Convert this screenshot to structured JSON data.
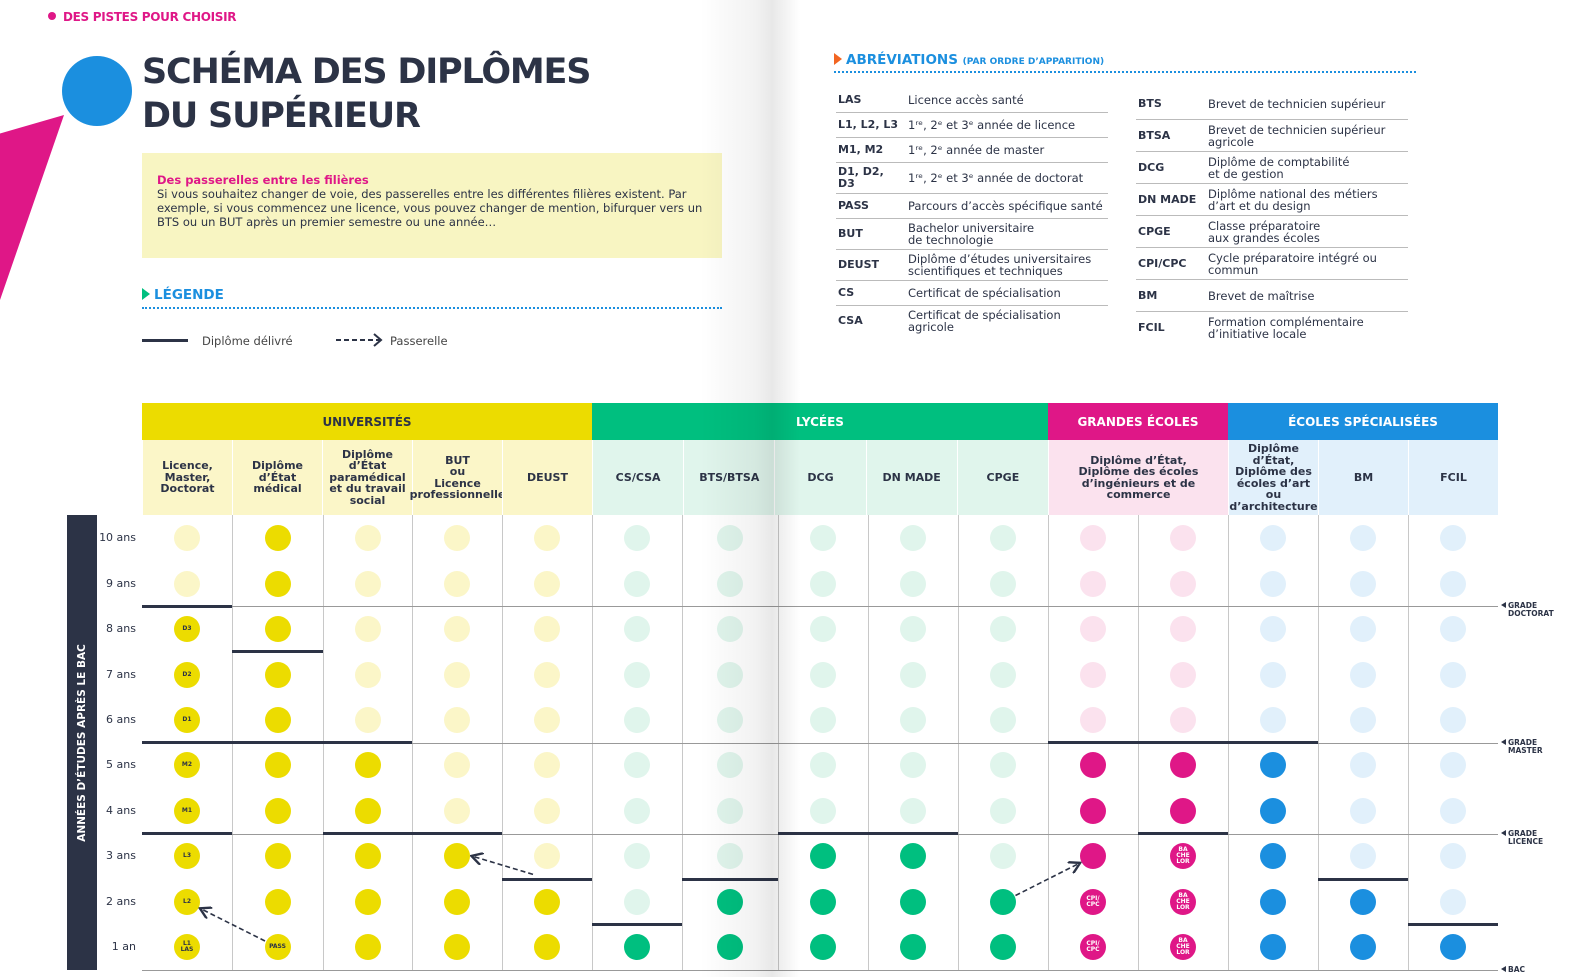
{
  "header": {
    "kicker": "DES PISTES POUR CHOISIR",
    "title": "SCHÉMA DES DIPLÔMES\nDU SUPÉRIEUR"
  },
  "callout": {
    "title": "Des passerelles entre les filières",
    "body": "Si vous souhaitez changer de voie, des passerelles entre les différentes filières existent. Par exemple, si vous commencez une licence, vous pouvez changer de mention, bifurquer vers un BTS ou un BUT après un premier semestre ou une année…"
  },
  "legend": {
    "title": "LÉGENDE",
    "items": [
      "Diplôme délivré",
      "Passerelle"
    ]
  },
  "abbreviations": {
    "title": "ABRÉVIATIONS",
    "subtitle": "(PAR ORDRE D’APPARITION)",
    "columns": [
      [
        [
          "LAS",
          "Licence accès santé"
        ],
        [
          "L1, L2, L3",
          "1ʳᵉ, 2ᵉ et 3ᵉ année de licence"
        ],
        [
          "M1, M2",
          "1ʳᵉ, 2ᵉ année de master"
        ],
        [
          "D1, D2, D3",
          "1ʳᵉ, 2ᵉ et 3ᵉ année de doctorat"
        ],
        [
          "PASS",
          "Parcours d’accès spécifique santé"
        ],
        [
          "BUT",
          "Bachelor universitaire\nde technologie"
        ],
        [
          "DEUST",
          "Diplôme d’études universitaires\nscientifiques et techniques"
        ],
        [
          "CS",
          "Certificat de spécialisation"
        ],
        [
          "CSA",
          "Certificat de spécialisation agricole"
        ]
      ],
      [
        [
          "BTS",
          "Brevet de technicien supérieur"
        ],
        [
          "BTSA",
          "Brevet de technicien supérieur\nagricole"
        ],
        [
          "DCG",
          "Diplôme de comptabilité\net de gestion"
        ],
        [
          "DN MADE",
          "Diplôme national des métiers\nd’art et du design"
        ],
        [
          "CPGE",
          "Classe préparatoire\naux grandes écoles"
        ],
        [
          "CPI/CPC",
          "Cycle préparatoire intégré ou\ncommun"
        ],
        [
          "BM",
          "Brevet de maîtrise"
        ],
        [
          "FCIL",
          "Formation complémentaire\nd’initiative locale"
        ]
      ]
    ]
  },
  "schema": {
    "axis_title": "ANNÉES D’ÉTUDES APRÈS LE BAC",
    "years": [
      "1 an",
      "2 ans",
      "3 ans",
      "4 ans",
      "5 ans",
      "6 ans",
      "7 ans",
      "8 ans",
      "9 ans",
      "10 ans"
    ],
    "grades": [
      {
        "label": "BAC",
        "after": 0
      },
      {
        "label": "GRADE\nLICENCE",
        "after": 3
      },
      {
        "label": "GRADE\nMASTER",
        "after": 5
      },
      {
        "label": "GRADE\nDOCTORAT",
        "after": 8
      }
    ],
    "groups": [
      {
        "name": "UNIVERSITÉS",
        "color": "#ecdc00",
        "light": "#fbf6c8",
        "text_color": "#2c3346",
        "dot_text": "#2c3346",
        "headers": [
          "Licence,\nMaster,\nDoctorat",
          "Diplôme d’État\nmédical",
          "Diplôme d’État\nparamédical\net du travail\nsocial",
          "BUT\nou\nLicence\nprofessionnelle",
          "DEUST"
        ],
        "columns": [
          {
            "dots": [
              1,
              1,
              1,
              1,
              1,
              1,
              1,
              1,
              0,
              0
            ],
            "labels": [
              "L1\nLAS",
              "L2",
              "L3",
              "M1",
              "M2",
              "D1",
              "D2",
              "D3"
            ],
            "diplomas": [
              3,
              5,
              8
            ]
          },
          {
            "dots": [
              1,
              1,
              1,
              1,
              1,
              1,
              1,
              1,
              1,
              1
            ],
            "labels": [
              "PASS"
            ],
            "diplomas": [
              5,
              7
            ]
          },
          {
            "dots": [
              1,
              1,
              1,
              1,
              1,
              0,
              0,
              0,
              0,
              0
            ],
            "labels": [],
            "diplomas": [
              3,
              5
            ]
          },
          {
            "dots": [
              1,
              1,
              1,
              0,
              0,
              0,
              0,
              0,
              0,
              0
            ],
            "labels": [],
            "diplomas": [
              3
            ]
          },
          {
            "dots": [
              1,
              1,
              0,
              0,
              0,
              0,
              0,
              0,
              0,
              0
            ],
            "labels": [],
            "diplomas": [
              2
            ]
          }
        ]
      },
      {
        "name": "LYCÉES",
        "color": "#00bf7f",
        "light": "#e0f5ec",
        "text_color": "#ffffff",
        "dot_text": "#ffffff",
        "headers": [
          "CS/CSA",
          "BTS/BTSA",
          "DCG",
          "DN MADE",
          "CPGE"
        ],
        "columns": [
          {
            "dots": [
              1,
              0,
              0,
              0,
              0,
              0,
              0,
              0,
              0,
              0
            ],
            "labels": [],
            "diplomas": [
              1
            ]
          },
          {
            "dots": [
              1,
              1,
              0,
              0,
              0,
              0,
              0,
              0,
              0,
              0
            ],
            "labels": [],
            "diplomas": [
              2
            ]
          },
          {
            "dots": [
              1,
              1,
              1,
              0,
              0,
              0,
              0,
              0,
              0,
              0
            ],
            "labels": [],
            "diplomas": [
              3
            ]
          },
          {
            "dots": [
              1,
              1,
              1,
              0,
              0,
              0,
              0,
              0,
              0,
              0
            ],
            "labels": [],
            "diplomas": [
              3
            ]
          },
          {
            "dots": [
              1,
              1,
              0,
              0,
              0,
              0,
              0,
              0,
              0,
              0
            ],
            "labels": [],
            "diplomas": []
          }
        ]
      },
      {
        "name": "GRANDES ÉCOLES",
        "color": "#df1787",
        "light": "#fbe2ee",
        "text_color": "#ffffff",
        "dot_text": "#ffffff",
        "headers": [
          "Diplôme d’État,\nDiplôme des écoles\nd’ingénieurs et de commerce"
        ],
        "columns": [
          {
            "dots": [
              1,
              1,
              1,
              1,
              1,
              0,
              0,
              0,
              0,
              0
            ],
            "labels": [
              "CPI/\nCPC",
              "CPI/\nCPC"
            ],
            "diplomas": [
              5
            ]
          },
          {
            "dots": [
              1,
              1,
              1,
              1,
              1,
              0,
              0,
              0,
              0,
              0
            ],
            "labels": [
              "BA\nCHE\nLOR",
              "BA\nCHE\nLOR",
              "BA\nCHE\nLOR"
            ],
            "diplomas": [
              3,
              5
            ]
          }
        ]
      },
      {
        "name": "ÉCOLES SPÉCIALISÉES",
        "color": "#1b8fdf",
        "light": "#e1f0fb",
        "text_color": "#ffffff",
        "dot_text": "#ffffff",
        "headers": [
          "Diplôme d’État,\nDiplôme des\nécoles d’art ou\nd’architecture",
          "BM",
          "FCIL"
        ],
        "columns": [
          {
            "dots": [
              1,
              1,
              1,
              1,
              1,
              0,
              0,
              0,
              0,
              0
            ],
            "labels": [],
            "diplomas": [
              5
            ]
          },
          {
            "dots": [
              1,
              1,
              0,
              0,
              0,
              0,
              0,
              0,
              0,
              0
            ],
            "labels": [],
            "diplomas": [
              2
            ]
          },
          {
            "dots": [
              1,
              0,
              0,
              0,
              0,
              0,
              0,
              0,
              0,
              0
            ],
            "labels": [],
            "diplomas": [
              1
            ]
          }
        ]
      }
    ],
    "passerelles": [
      {
        "from": [
          1,
          1
        ],
        "to": [
          0,
          2
        ]
      },
      {
        "from": [
          4,
          3
        ],
        "to": [
          3,
          3
        ]
      },
      {
        "from": [
          9,
          2
        ],
        "to": [
          10,
          3
        ]
      }
    ]
  }
}
